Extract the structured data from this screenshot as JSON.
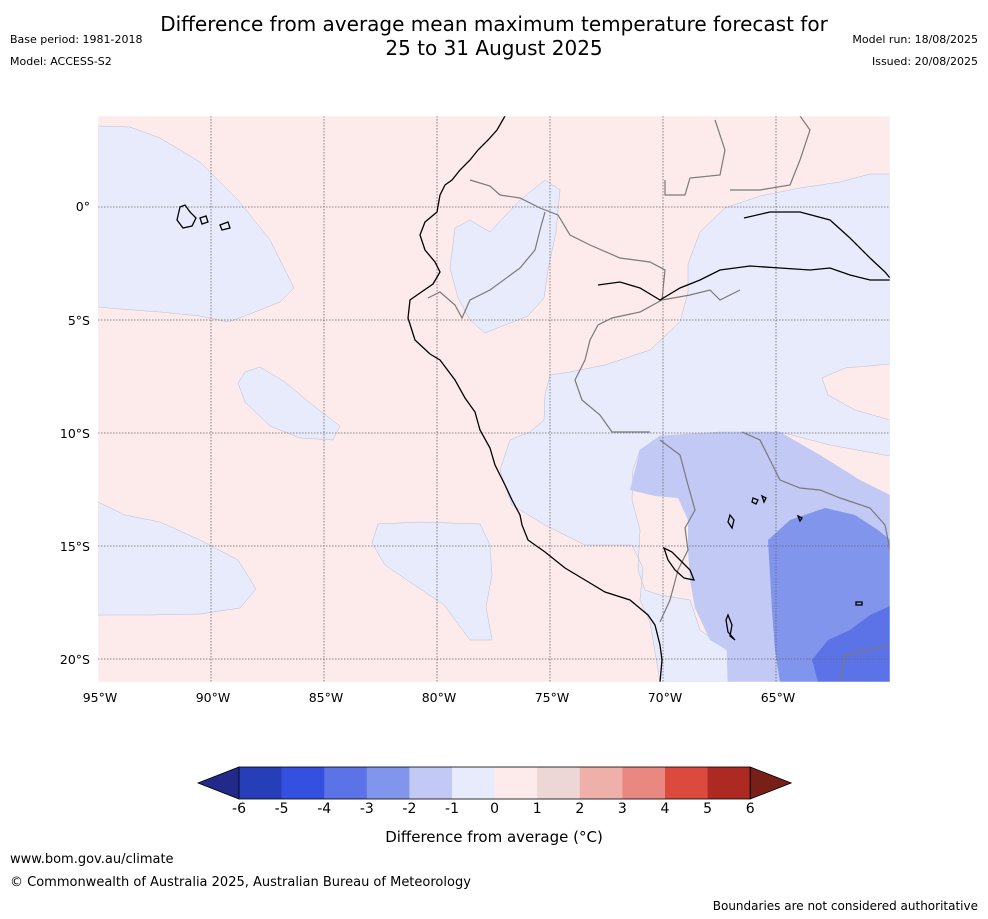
{
  "header": {
    "title_line1": "Difference from average mean maximum temperature forecast for",
    "title_line2": "25 to 31 August 2025",
    "base_period": "Base period: 1981-2018",
    "model": "Model: ACCESS-S2",
    "model_run": "Model run: 18/08/2025",
    "issued": "Issued: 20/08/2025"
  },
  "map": {
    "lon_labels": [
      "95°W",
      "90°W",
      "85°W",
      "80°W",
      "75°W",
      "70°W",
      "65°W"
    ],
    "lat_labels": [
      "0°",
      "5°S",
      "10°S",
      "15°S",
      "20°S"
    ]
  },
  "colorbar": {
    "ticks": [
      "-6",
      "-5",
      "-4",
      "-3",
      "-2",
      "-1",
      "0",
      "1",
      "2",
      "3",
      "4",
      "5",
      "6"
    ],
    "colors": [
      "#212a8a",
      "#263fb8",
      "#3350e0",
      "#5b73e6",
      "#8195ec",
      "#c1c9f4",
      "#e8ebfb",
      "#fcebea",
      "#ecd6d6",
      "#efb0aa",
      "#e88880",
      "#dc4a3e",
      "#ac2a22",
      "#782018"
    ],
    "label": "Difference from average (°C)"
  },
  "footer": {
    "url": "www.bom.gov.au/climate",
    "copyright": "© Commonwealth of Australia 2025, Australian Bureau of Meteorology",
    "disclaimer": "Boundaries are not considered authoritative"
  }
}
